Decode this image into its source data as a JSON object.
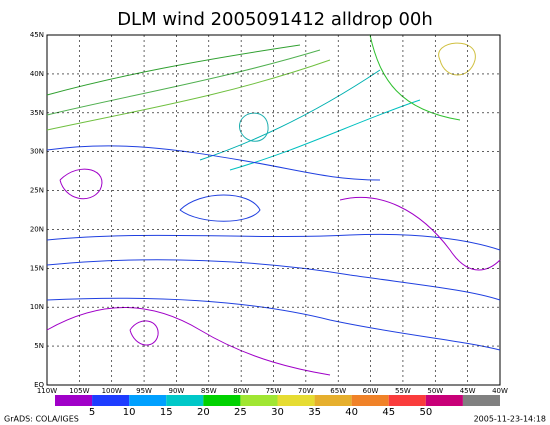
{
  "title": "DLM wind 2005091412 alldrop 00h",
  "lat_labels": [
    "45N",
    "40N",
    "35N",
    "30N",
    "25N",
    "20N",
    "15N",
    "10N",
    "5N",
    "EQ"
  ],
  "lon_labels": [
    "110W",
    "105W",
    "100W",
    "95W",
    "90W",
    "85W",
    "80W",
    "75W",
    "70W",
    "65W",
    "60W",
    "55W",
    "50W",
    "45W",
    "40W"
  ],
  "colorbar": {
    "colors": [
      "#a000c8",
      "#1e3cff",
      "#00a0ff",
      "#00c8c8",
      "#00d200",
      "#a0e632",
      "#e6dc32",
      "#e6af2d",
      "#f08228",
      "#fa3c3c",
      "#c80078",
      "#808080"
    ],
    "labels": [
      5,
      10,
      15,
      20,
      25,
      30,
      35,
      40,
      45,
      50
    ]
  },
  "footer": {
    "left": "GrADS: COLA/IGES",
    "right": "2005-11-23-14:18"
  }
}
